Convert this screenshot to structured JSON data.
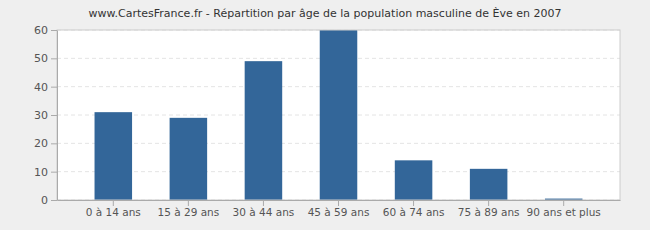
{
  "chart_data": {
    "type": "bar",
    "title": "www.CartesFrance.fr - Répartition par âge de la population masculine de Ève en 2007",
    "categories": [
      "0 à 14 ans",
      "15 à 29 ans",
      "30 à 44 ans",
      "45 à 59 ans",
      "60 à 74 ans",
      "75 à 89 ans",
      "90 ans et plus"
    ],
    "values": [
      31,
      29,
      49,
      60,
      14,
      11,
      0.5
    ],
    "color": "#336699",
    "ylim": [
      0,
      60
    ],
    "yticks": [
      0,
      10,
      20,
      30,
      40,
      50,
      60
    ],
    "grid": true
  }
}
